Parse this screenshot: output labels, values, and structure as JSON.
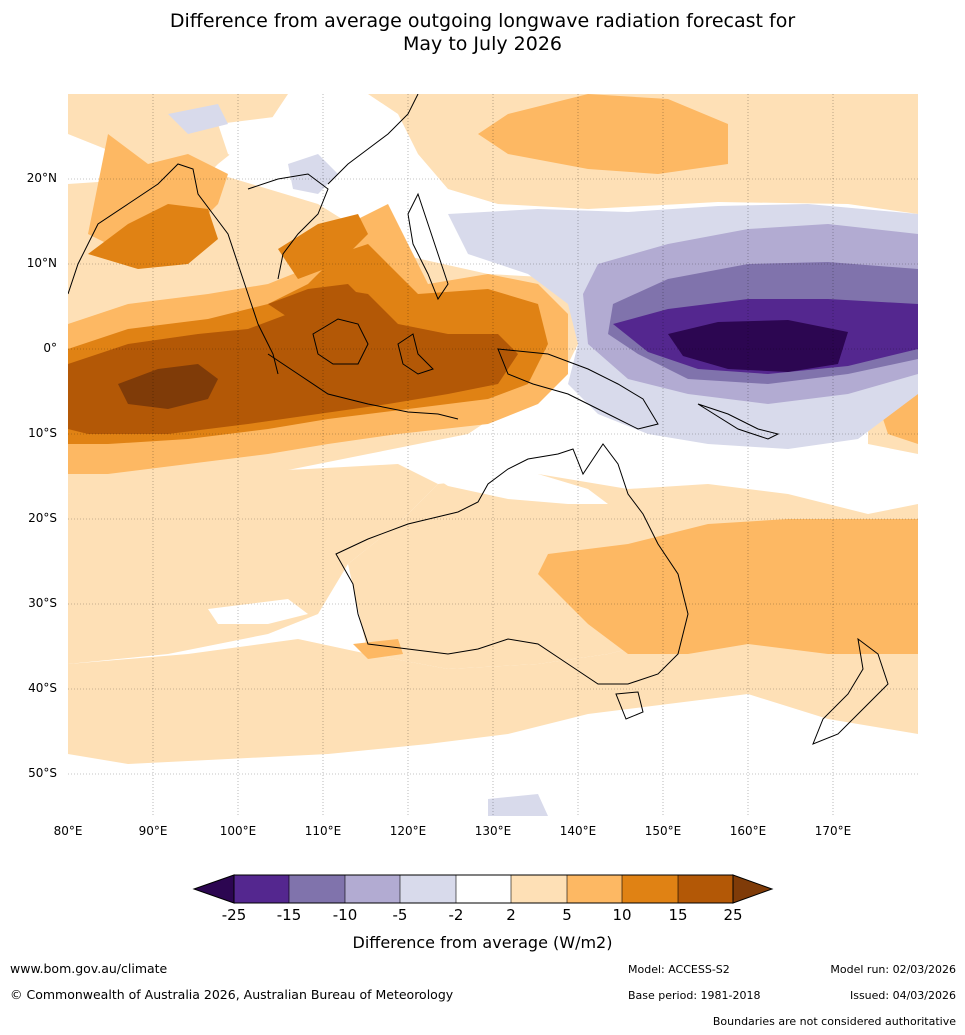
{
  "title_line1": "Difference from average outgoing longwave radiation forecast for",
  "title_line2": "May to July 2026",
  "map": {
    "lat_labels": [
      "20°N",
      "10°N",
      "0°",
      "10°S",
      "20°S",
      "30°S",
      "40°S",
      "50°S"
    ],
    "lon_labels": [
      "80°E",
      "90°E",
      "100°E",
      "110°E",
      "120°E",
      "130°E",
      "140°E",
      "150°E",
      "160°E",
      "170°E"
    ],
    "extent": {
      "lon_min": 80,
      "lon_max": 180,
      "lat_min": -55,
      "lat_max": 30
    }
  },
  "colorbar": {
    "tick_labels": [
      "-25",
      "-15",
      "-10",
      "-5",
      "-2",
      "2",
      "5",
      "10",
      "15",
      "25"
    ],
    "colors": {
      "below_-25": "#2c0651",
      "-25_-15": "#54278f",
      "-15_-10": "#8073ac",
      "-10_-5": "#b2abd2",
      "-5_-2": "#d8daeb",
      "-2_2": "#ffffff",
      "2_5": "#fee0b6",
      "5_10": "#fdb863",
      "10_15": "#e08214",
      "15_25": "#b35806",
      "above_25": "#7f3b08"
    },
    "title": "Difference from average (W/m2)"
  },
  "footer": {
    "website": "www.bom.gov.au/climate",
    "copyright": "© Commonwealth of Australia 2026, Australian Bureau of Meteorology",
    "model": "Model: ACCESS-S2",
    "base_period": "Base period: 1981-2018",
    "model_run": "Model run: 02/03/2026",
    "issued": "Issued: 04/03/2026",
    "disclaimer": "Boundaries are not considered authoritative"
  }
}
